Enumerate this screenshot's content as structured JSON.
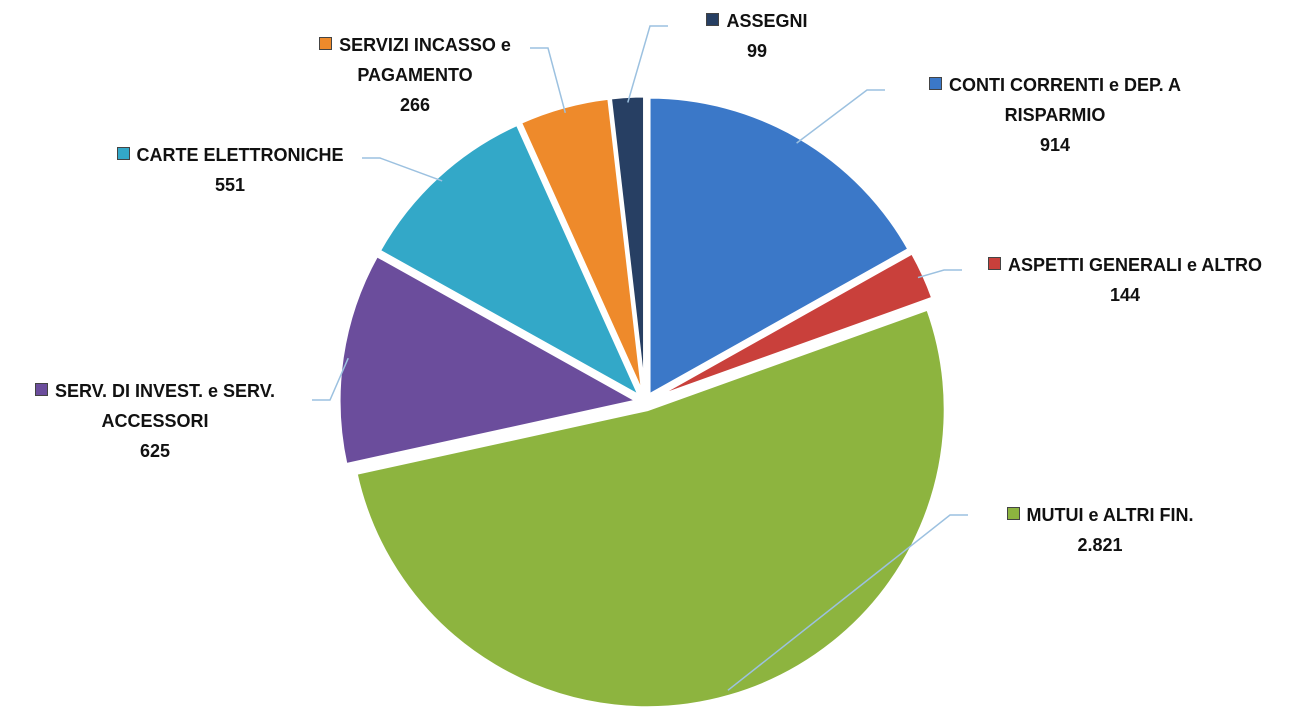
{
  "chart_data": {
    "type": "pie",
    "categories": [
      "CONTI CORRENTI e DEP. A RISPARMIO",
      "ASPETTI GENERALI e ALTRO",
      "MUTUI e ALTRI FIN.",
      "SERV. DI INVEST. e SERV. ACCESSORI",
      "CARTE ELETTRONICHE",
      "SERVIZI INCASSO e PAGAMENTO",
      "ASSEGNI"
    ],
    "values": [
      914,
      144,
      2821,
      625,
      551,
      266,
      99
    ],
    "value_labels": [
      "914",
      "144",
      "2.821",
      "625",
      "551",
      "266",
      "99"
    ],
    "colors": [
      "#3b78c8",
      "#c9403b",
      "#8db43f",
      "#6b4d9c",
      "#33a8c8",
      "#ee8a2b",
      "#273f63"
    ]
  }
}
